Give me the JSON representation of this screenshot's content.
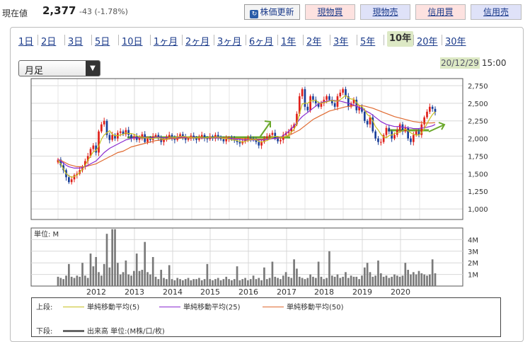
{
  "header": {
    "price_label": "現在値",
    "price_value": "2,377",
    "price_change": "-43 (-1.78%)",
    "refresh_label": "株価更新",
    "buttons": [
      "現物買",
      "現物売",
      "信用買",
      "信用売"
    ]
  },
  "period_tabs": [
    "1日",
    "2日",
    "3日",
    "5日",
    "10日",
    "1ヶ月",
    "2ヶ月",
    "3ヶ月",
    "6ヶ月",
    "1年",
    "2年",
    "3年",
    "5年",
    "10年",
    "20年",
    "30年"
  ],
  "active_period": "10年",
  "selector": {
    "value": "月足"
  },
  "timestamp": {
    "date": "20/12/29",
    "time": "15:00"
  },
  "volume_unit_label": "単位: M",
  "legend": {
    "upper_label": "上段:",
    "ma5": "単純移動平均(5)",
    "ma25": "単純移動平均(25)",
    "ma50": "単純移動平均(50)",
    "lower_label": "下段:",
    "volume": "出来高 単位:(M株/口/枚)"
  },
  "colors": {
    "up": "#e0201a",
    "down": "#1a3f99",
    "ma5": "#c8c020",
    "ma25": "#8a2ad0",
    "ma50": "#e06a30",
    "annotation": "#6aa82a"
  },
  "chart_data": {
    "type": "candlestick",
    "x_axis_labels": [
      "2012",
      "2013",
      "2014",
      "2015",
      "2016",
      "2017",
      "2018",
      "2019",
      "2020"
    ],
    "price_axis": {
      "ticks": [
        "2,750",
        "2,500",
        "2,250",
        "2,000",
        "1,750",
        "1,500",
        "1,250",
        "1,000"
      ],
      "ylim": [
        850,
        2850
      ]
    },
    "volume_axis": {
      "ticks": [
        "4M",
        "3M",
        "2M",
        "1M"
      ],
      "ylim": [
        0,
        5
      ]
    },
    "closes": [
      1700,
      1620,
      1550,
      1450,
      1380,
      1420,
      1480,
      1500,
      1550,
      1600,
      1680,
      1750,
      1850,
      1900,
      1800,
      2100,
      2200,
      2250,
      2050,
      1980,
      2050,
      2000,
      2080,
      2100,
      2060,
      2120,
      2050,
      2000,
      2030,
      1980,
      2020,
      2060,
      1950,
      2000,
      1980,
      2030,
      2050,
      2000,
      1950,
      1980,
      2020,
      2050,
      2010,
      1980,
      2030,
      2060,
      2020,
      1980,
      2000,
      2040,
      2010,
      1980,
      2020,
      2050,
      2000,
      1990,
      2030,
      2000,
      2050,
      2020,
      1990,
      1960,
      2000,
      2010,
      1990,
      1970,
      1950,
      1930,
      1960,
      1990,
      2010,
      2000,
      1980,
      1950,
      1900,
      1950,
      2000,
      2030,
      2050,
      2080,
      2000,
      1960,
      1980,
      2050,
      2080,
      2100,
      2150,
      2200,
      2350,
      2600,
      2700,
      2450,
      2400,
      2600,
      2550,
      2500,
      2450,
      2500,
      2550,
      2600,
      2550,
      2500,
      2450,
      2600,
      2650,
      2700,
      2600,
      2450,
      2500,
      2550,
      2400,
      2450,
      2380,
      2250,
      2200,
      2300,
      2100,
      2000,
      1950,
      1950,
      2050,
      2150,
      2100,
      2000,
      2050,
      2120,
      2200,
      2100,
      2150,
      2000,
      1950,
      2050,
      2100,
      2050,
      2200,
      2300,
      2380,
      2450,
      2420,
      2377
    ],
    "ma5": [
      1690,
      1640,
      1570,
      1500,
      1470,
      1450,
      1460,
      1480,
      1520,
      1560,
      1620,
      1690,
      1750,
      1810,
      1830,
      1890,
      1990,
      2050,
      2080,
      2110,
      2060,
      2040,
      2040,
      2050,
      2060,
      2080,
      2070,
      2070,
      2060,
      2040,
      2020,
      2020,
      2010,
      2010,
      2000,
      2000,
      2010,
      2010,
      2000,
      1990,
      1990,
      2010,
      2020,
      2010,
      2020,
      2030,
      2030,
      2030,
      2020,
      2020,
      2010,
      2010,
      2010,
      2020,
      2010,
      2010,
      2020,
      2010,
      2020,
      2020,
      2010,
      2000,
      2000,
      1990,
      1980,
      1980,
      1970,
      1960,
      1950,
      1960,
      1970,
      1980,
      1990,
      1980,
      1960,
      1950,
      1960,
      1970,
      1990,
      2020,
      2030,
      2030,
      2020,
      2020,
      2030,
      2050,
      2090,
      2130,
      2210,
      2350,
      2490,
      2500,
      2500,
      2530,
      2540,
      2540,
      2510,
      2500,
      2510,
      2520,
      2530,
      2540,
      2530,
      2530,
      2550,
      2580,
      2610,
      2580,
      2560,
      2560,
      2510,
      2470,
      2450,
      2410,
      2340,
      2310,
      2250,
      2170,
      2120,
      2060,
      2020,
      2010,
      2040,
      2050,
      2070,
      2080,
      2090,
      2110,
      2130,
      2110,
      2080,
      2060,
      2050,
      2050,
      2080,
      2140,
      2210,
      2280,
      2340,
      2380
    ],
    "ma25": [
      1700,
      1680,
      1650,
      1620,
      1600,
      1590,
      1580,
      1580,
      1580,
      1590,
      1600,
      1620,
      1640,
      1660,
      1680,
      1720,
      1760,
      1800,
      1830,
      1860,
      1880,
      1900,
      1920,
      1940,
      1960,
      1980,
      1990,
      2000,
      2010,
      2010,
      2010,
      2020,
      2020,
      2010,
      2010,
      2010,
      2020,
      2020,
      2010,
      2010,
      2010,
      2010,
      2010,
      2010,
      2010,
      2020,
      2020,
      2020,
      2020,
      2020,
      2020,
      2010,
      2010,
      2010,
      2010,
      2010,
      2010,
      2010,
      2010,
      2010,
      2010,
      2000,
      2000,
      2000,
      2000,
      1990,
      1990,
      1990,
      1980,
      1980,
      1980,
      1980,
      1980,
      1980,
      1980,
      1980,
      1980,
      1990,
      1990,
      2000,
      2000,
      2010,
      2020,
      2040,
      2070,
      2100,
      2140,
      2180,
      2220,
      2270,
      2310,
      2340,
      2370,
      2400,
      2430,
      2460,
      2490,
      2510,
      2520,
      2530,
      2540,
      2540,
      2540,
      2530,
      2530,
      2520,
      2510,
      2500,
      2490,
      2470,
      2460,
      2440,
      2420,
      2400,
      2380,
      2360,
      2330,
      2300,
      2270,
      2240,
      2220,
      2200,
      2190,
      2180,
      2170,
      2170,
      2170,
      2160,
      2160,
      2150,
      2150,
      2140,
      2140,
      2140,
      2150,
      2150,
      2160,
      2170,
      2180,
      2200
    ],
    "ma50": [
      1700,
      1690,
      1670,
      1650,
      1630,
      1620,
      1610,
      1600,
      1600,
      1600,
      1600,
      1610,
      1620,
      1630,
      1640,
      1660,
      1680,
      1700,
      1720,
      1740,
      1760,
      1780,
      1800,
      1810,
      1820,
      1840,
      1860,
      1880,
      1890,
      1900,
      1910,
      1920,
      1930,
      1940,
      1950,
      1960,
      1970,
      1975,
      1980,
      1985,
      1990,
      1995,
      2000,
      2000,
      2000,
      2005,
      2010,
      2010,
      2010,
      2010,
      2010,
      2010,
      2010,
      2010,
      2010,
      2010,
      2010,
      2010,
      2010,
      2010,
      2010,
      2010,
      2010,
      2005,
      2005,
      2000,
      2000,
      2000,
      2000,
      1995,
      1995,
      1995,
      1990,
      1990,
      1990,
      1990,
      1990,
      1995,
      1995,
      2000,
      2000,
      2005,
      2010,
      2020,
      2030,
      2040,
      2060,
      2080,
      2100,
      2120,
      2150,
      2180,
      2210,
      2240,
      2270,
      2290,
      2310,
      2330,
      2350,
      2370,
      2390,
      2400,
      2410,
      2420,
      2430,
      2440,
      2450,
      2455,
      2460,
      2465,
      2470,
      2470,
      2465,
      2460,
      2450,
      2440,
      2430,
      2415,
      2400,
      2385,
      2370,
      2355,
      2340,
      2325,
      2310,
      2300,
      2290,
      2280,
      2270,
      2260,
      2250,
      2240,
      2235,
      2230,
      2225,
      2220,
      2220,
      2220,
      2222,
      2225
    ],
    "volumes": [
      0.8,
      0.7,
      0.6,
      0.9,
      1.9,
      0.8,
      0.7,
      0.9,
      0.8,
      2.0,
      0.9,
      0.7,
      2.8,
      1.7,
      2.5,
      1.2,
      0.9,
      1.9,
      4.5,
      1.6,
      4.9,
      4.9,
      2.0,
      1.0,
      1.2,
      2.2,
      1.0,
      0.9,
      1.3,
      2.8,
      1.3,
      1.4,
      3.8,
      1.2,
      1.0,
      2.5,
      0.8,
      0.6,
      1.4,
      0.7,
      0.6,
      1.8,
      0.6,
      0.5,
      0.7,
      0.6,
      0.5,
      0.6,
      0.7,
      0.5,
      0.6,
      0.6,
      0.7,
      0.5,
      0.6,
      1.9,
      0.6,
      0.5,
      0.6,
      0.7,
      0.5,
      0.6,
      0.8,
      0.6,
      0.5,
      0.6,
      1.7,
      0.5,
      0.6,
      0.7,
      0.5,
      0.6,
      0.9,
      0.6,
      0.7,
      0.5,
      1.6,
      0.6,
      0.7,
      2.1,
      0.8,
      0.7,
      0.6,
      0.9,
      1.2,
      0.8,
      0.7,
      2.3,
      1.5,
      0.8,
      0.7,
      0.6,
      0.7,
      1.0,
      0.8,
      0.7,
      2.1,
      0.8,
      0.6,
      0.7,
      3.0,
      0.9,
      0.8,
      1.0,
      0.7,
      0.8,
      1.2,
      0.7,
      0.9,
      0.8,
      0.8,
      0.6,
      0.9,
      1.6,
      2.0,
      1.2,
      0.8,
      0.9,
      2.2,
      1.1,
      0.8,
      0.9,
      0.7,
      0.8,
      1.0,
      0.9,
      0.8,
      0.9,
      2.0,
      1.4,
      1.0,
      1.2,
      1.0,
      1.3,
      1.1,
      1.0,
      0.9,
      1.0,
      2.3,
      1.1
    ]
  }
}
